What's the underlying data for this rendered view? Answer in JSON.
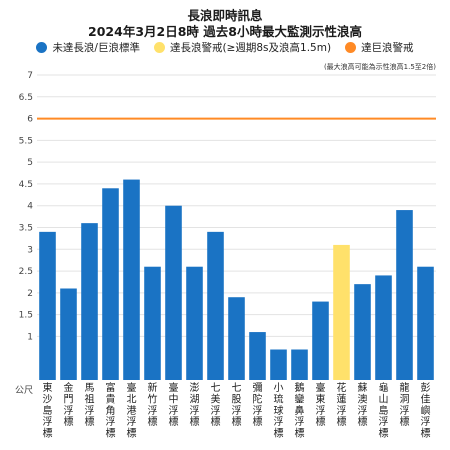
{
  "colors": {
    "below": "#1a73c4",
    "long_wave": "#ffe16b",
    "huge_wave": "#ff8a25",
    "grid": "#e3e3e3"
  },
  "chart_data": {
    "type": "bar",
    "title": "長浪即時訊息",
    "subtitle": "2024年3月2日8時 過去8小時最大監測示性浪高",
    "ylabel": "公尺",
    "note": "(最大浪高可能為示性浪高1.5至2倍)",
    "ylim": [
      0,
      7
    ],
    "yticks": [
      1,
      1.5,
      2,
      2.5,
      3,
      3.5,
      4,
      4.5,
      5,
      5.5,
      6,
      6.5,
      7
    ],
    "grid": true,
    "legend_position": "top",
    "legend": [
      {
        "label": "未達長浪/巨浪標準",
        "color_key": "below"
      },
      {
        "label": "達長浪警戒(≥週期8s及浪高1.5m)",
        "color_key": "long_wave"
      },
      {
        "label": "達巨浪警戒",
        "color_key": "huge_wave"
      }
    ],
    "threshold": {
      "value": 6,
      "color_key": "huge_wave"
    },
    "categories": [
      "東沙島浮標",
      "金門浮標",
      "馬祖浮標",
      "富貴角浮標",
      "臺北港浮標",
      "新竹浮標",
      "臺中浮標",
      "澎湖浮標",
      "七美浮標",
      "七股浮標",
      "彌陀浮標",
      "小琉球浮標",
      "鵝鑾鼻浮標",
      "臺東浮標",
      "花蓮浮標",
      "蘇澳浮標",
      "龜山島浮標",
      "龍洞浮標",
      "彭佳嶼浮標"
    ],
    "values": [
      3.4,
      2.1,
      3.6,
      4.4,
      4.6,
      2.6,
      4.0,
      2.6,
      3.4,
      1.9,
      1.1,
      0.7,
      0.7,
      1.8,
      3.1,
      2.2,
      2.4,
      3.9,
      2.6
    ],
    "status": [
      "below",
      "below",
      "below",
      "below",
      "below",
      "below",
      "below",
      "below",
      "below",
      "below",
      "below",
      "below",
      "below",
      "below",
      "long_wave",
      "below",
      "below",
      "below",
      "below"
    ]
  }
}
